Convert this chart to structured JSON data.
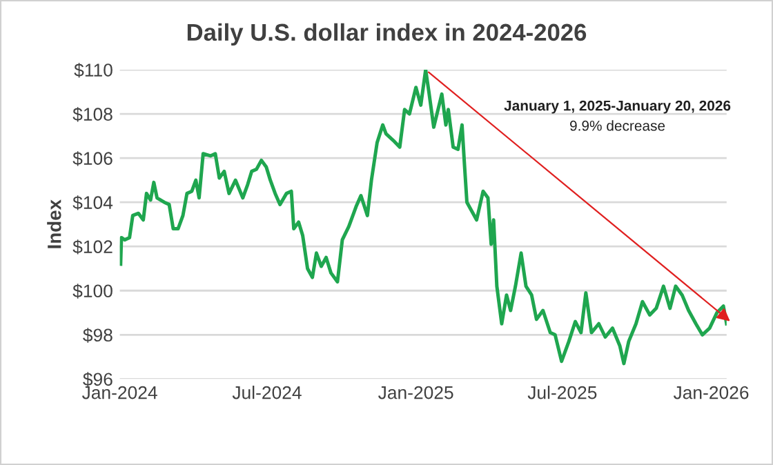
{
  "chart_data": {
    "type": "line",
    "title": "Daily U.S. dollar index in 2024-2026",
    "ylabel": "Index",
    "annotations": [
      "January 1, 2025-January 20, 2026",
      "9.9% decrease"
    ],
    "x": [
      "2024-01-02",
      "2024-01-03",
      "2024-01-07",
      "2024-01-13",
      "2024-01-17",
      "2024-01-24",
      "2024-01-30",
      "2024-02-03",
      "2024-02-08",
      "2024-02-12",
      "2024-02-16",
      "2024-02-25",
      "2024-03-02",
      "2024-03-07",
      "2024-03-13",
      "2024-03-19",
      "2024-03-24",
      "2024-03-30",
      "2024-04-04",
      "2024-04-08",
      "2024-04-13",
      "2024-04-22",
      "2024-04-28",
      "2024-05-03",
      "2024-05-09",
      "2024-05-15",
      "2024-05-23",
      "2024-06-01",
      "2024-06-07",
      "2024-06-12",
      "2024-06-18",
      "2024-06-24",
      "2024-06-30",
      "2024-07-05",
      "2024-07-11",
      "2024-07-17",
      "2024-07-25",
      "2024-07-31",
      "2024-08-03",
      "2024-08-09",
      "2024-08-14",
      "2024-08-20",
      "2024-08-26",
      "2024-08-31",
      "2024-09-06",
      "2024-09-12",
      "2024-09-18",
      "2024-09-26",
      "2024-10-02",
      "2024-10-10",
      "2024-10-19",
      "2024-10-25",
      "2024-11-02",
      "2024-11-07",
      "2024-11-14",
      "2024-11-21",
      "2024-11-25",
      "2024-12-04",
      "2024-12-12",
      "2024-12-18",
      "2024-12-24",
      "2025-01-01",
      "2025-01-07",
      "2025-01-13",
      "2025-01-17",
      "2025-01-23",
      "2025-02-02",
      "2025-02-07",
      "2025-02-10",
      "2025-02-16",
      "2025-02-22",
      "2025-02-27",
      "2025-03-02",
      "2025-03-05",
      "2025-03-11",
      "2025-03-17",
      "2025-03-25",
      "2025-03-31",
      "2025-04-04",
      "2025-04-07",
      "2025-04-11",
      "2025-04-17",
      "2025-04-23",
      "2025-04-28",
      "2025-05-04",
      "2025-05-11",
      "2025-05-17",
      "2025-05-24",
      "2025-05-30",
      "2025-06-07",
      "2025-06-16",
      "2025-06-22",
      "2025-06-30",
      "2025-07-09",
      "2025-07-17",
      "2025-07-24",
      "2025-07-30",
      "2025-08-06",
      "2025-08-15",
      "2025-08-23",
      "2025-09-01",
      "2025-09-10",
      "2025-09-15",
      "2025-09-21",
      "2025-09-30",
      "2025-10-08",
      "2025-10-17",
      "2025-10-25",
      "2025-11-03",
      "2025-11-11",
      "2025-11-18",
      "2025-11-26",
      "2025-12-04",
      "2025-12-13",
      "2025-12-21",
      "2025-12-30",
      "2026-01-08",
      "2026-01-16",
      "2026-01-20"
    ],
    "series": [
      {
        "color": "#1fa64f",
        "values": [
          101.2,
          102.4,
          102.3,
          102.4,
          103.4,
          103.5,
          103.2,
          104.4,
          104.1,
          104.9,
          104.2,
          104.0,
          103.9,
          102.8,
          102.8,
          103.4,
          104.4,
          104.5,
          105.0,
          104.2,
          106.2,
          106.1,
          106.2,
          105.1,
          105.4,
          104.4,
          105.0,
          104.2,
          104.8,
          105.4,
          105.5,
          105.9,
          105.6,
          105.0,
          104.4,
          103.9,
          104.4,
          104.5,
          102.8,
          103.1,
          102.5,
          101.0,
          100.6,
          101.7,
          101.1,
          101.5,
          100.8,
          100.4,
          102.3,
          102.9,
          103.8,
          104.3,
          103.4,
          105.0,
          106.7,
          107.5,
          107.1,
          106.8,
          106.5,
          108.2,
          108.0,
          109.2,
          108.4,
          110.0,
          109.0,
          107.4,
          108.9,
          107.5,
          108.2,
          106.5,
          106.4,
          107.5,
          105.7,
          104.0,
          103.6,
          103.2,
          104.5,
          104.2,
          102.1,
          103.2,
          100.2,
          98.5,
          99.8,
          99.1,
          100.2,
          101.7,
          100.2,
          99.8,
          98.7,
          99.1,
          98.1,
          98.0,
          96.8,
          97.7,
          98.6,
          98.1,
          99.9,
          98.1,
          98.5,
          97.9,
          98.3,
          97.5,
          96.7,
          97.7,
          98.5,
          99.5,
          98.9,
          99.2,
          100.2,
          99.2,
          100.2,
          99.8,
          99.1,
          98.5,
          98.0,
          98.3,
          99.0,
          99.3,
          98.5
        ]
      }
    ],
    "xlim": [
      "2024-01-01",
      "2026-01-20"
    ],
    "xticks": [
      {
        "value": "2024-01-01",
        "label": "Jan-2024"
      },
      {
        "value": "2024-07-01",
        "label": "Jul-2024"
      },
      {
        "value": "2025-01-01",
        "label": "Jan-2025"
      },
      {
        "value": "2025-07-01",
        "label": "Jul-2025"
      },
      {
        "value": "2026-01-01",
        "label": "Jan-2026"
      }
    ],
    "ylim": [
      96,
      110
    ],
    "yticks": [
      {
        "value": 96,
        "label": "$96"
      },
      {
        "value": 98,
        "label": "$98"
      },
      {
        "value": 100,
        "label": "$100"
      },
      {
        "value": 102,
        "label": "$102"
      },
      {
        "value": 104,
        "label": "$104"
      },
      {
        "value": 106,
        "label": "$106"
      },
      {
        "value": 108,
        "label": "$108"
      },
      {
        "value": 110,
        "label": "$110"
      }
    ],
    "grid": "y",
    "marker": "none",
    "line_style": "solid"
  }
}
